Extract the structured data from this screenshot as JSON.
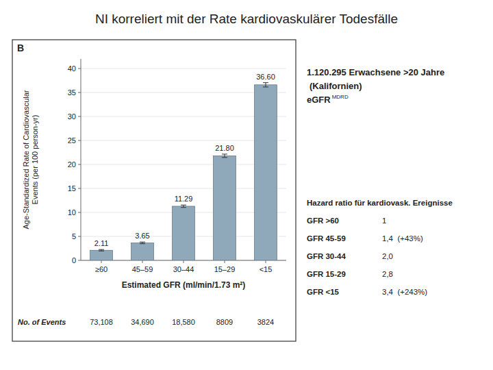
{
  "chart_data": {
    "type": "bar",
    "title": "NI korreliert mit der Rate kardiovaskulärer Todesfälle",
    "categories": [
      "≥60",
      "45–59",
      "30–44",
      "15–29",
      "<15"
    ],
    "values": [
      2.11,
      3.65,
      11.29,
      21.8,
      36.6
    ],
    "value_labels": [
      "2.11",
      "3.65",
      "11.29",
      "21.80",
      "36.60"
    ],
    "data_labels": true,
    "errors": [
      0.15,
      0.18,
      0.25,
      0.35,
      0.45
    ],
    "color": "#8fa8ba",
    "ylabel": "Age-Standardized Rate of Cardiovascular\nEvents (per 100 person-yr)",
    "xlabel": "Estimated GFR (ml/min/1.73 m²)",
    "ylim": [
      0,
      42
    ],
    "yticks": [
      0,
      5,
      10,
      15,
      20,
      25,
      30,
      35,
      40
    ],
    "panel_label": "B",
    "events_label": "No. of Events",
    "events": [
      "73,108",
      "34,690",
      "18,580",
      "8809",
      "3824"
    ],
    "annotations": [
      "1.120.295 Erwachsene >20 Jahre",
      "(Kalifornien)",
      "eGFR",
      "MDRD"
    ],
    "hazard_title": "Hazard ratio für kardiovask. Ereignisse",
    "hazard_rows": [
      {
        "label": "GFR >60",
        "value": "1"
      },
      {
        "label": "GFR 45-59",
        "value": "1,4  (+43%)"
      },
      {
        "label": "GFR 30-44",
        "value": "2,0"
      },
      {
        "label": "GFR 15-29",
        "value": "2,8"
      },
      {
        "label": "GFR <15",
        "value": "3,4  (+243%)"
      }
    ]
  }
}
